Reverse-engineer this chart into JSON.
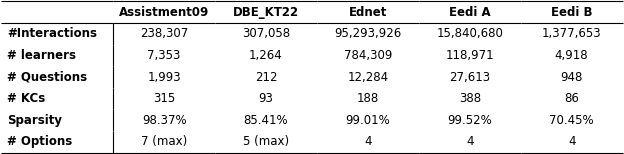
{
  "col_headers": [
    "Assistment09",
    "DBE_KT22",
    "Ednet",
    "Eedi A",
    "Eedi B"
  ],
  "row_headers": [
    "#Interactions",
    "# learners",
    "# Questions",
    "# KCs",
    "Sparsity",
    "# Options"
  ],
  "table_data": [
    [
      "238,307",
      "307,058",
      "95,293,926",
      "15,840,680",
      "1,377,653"
    ],
    [
      "7,353",
      "1,264",
      "784,309",
      "118,971",
      "4,918"
    ],
    [
      "1,993",
      "212",
      "12,284",
      "27,613",
      "948"
    ],
    [
      "315",
      "93",
      "188",
      "388",
      "86"
    ],
    [
      "98.37%",
      "85.41%",
      "99.01%",
      "99.52%",
      "70.45%"
    ],
    [
      "7 (max)",
      "5 (max)",
      "4",
      "4",
      "4"
    ]
  ],
  "bold_rows": [
    0
  ],
  "fig_width": 6.24,
  "fig_height": 1.54,
  "dpi": 100
}
